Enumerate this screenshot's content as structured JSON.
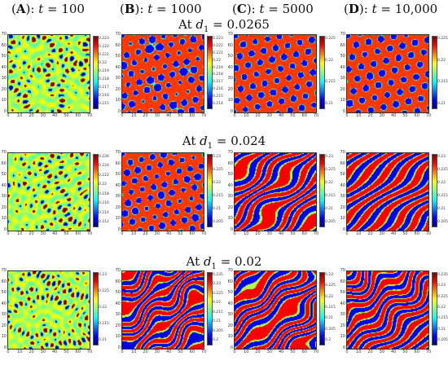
{
  "columns": [
    {
      "label": "A",
      "t": "100"
    },
    {
      "label": "B",
      "t": "1000"
    },
    {
      "label": "C",
      "t": "5000"
    },
    {
      "label": "D",
      "t": "10,000"
    }
  ],
  "rows": [
    {
      "heading_prefix": "At",
      "d_value": "0.0265"
    },
    {
      "heading_prefix": "At",
      "d_value": "0.024"
    },
    {
      "heading_prefix": "At",
      "d_value": "0.02"
    }
  ],
  "x_ticks": [
    "0",
    "10",
    "20",
    "30",
    "40",
    "50",
    "60",
    "70"
  ],
  "y_ticks": [
    "70",
    "60",
    "50",
    "40",
    "30",
    "20",
    "10",
    "0"
  ],
  "colorbars": [
    [
      [
        "0.223",
        "0.222",
        "0.221",
        "0.22",
        "0.219",
        "0.218",
        "0.217",
        "0.216",
        "0.215"
      ],
      [
        "0.223",
        "0.222",
        "0.221",
        "0.22",
        "0.219",
        "0.218",
        "0.217",
        "0.216",
        "0.215",
        "0.214"
      ],
      [
        "0.225",
        "0.22",
        "0.215",
        "0.21"
      ],
      [
        "0.225",
        "0.22",
        "0.215",
        "0.21"
      ]
    ],
    [
      [
        "0.226",
        "0.224",
        "0.222",
        "0.22",
        "0.218",
        "0.216",
        "0.214",
        "0.212"
      ],
      [
        "0.23",
        "0.225",
        "0.22",
        "0.215",
        "0.21",
        "0.205"
      ],
      [
        "0.23",
        "0.225",
        "0.22",
        "0.215",
        "0.21",
        "0.205"
      ],
      [
        "0.23",
        "0.225",
        "0.22",
        "0.215",
        "0.21",
        "0.205"
      ]
    ],
    [
      [
        "0.23",
        "0.225",
        "0.22",
        "0.215",
        "0.21"
      ],
      [
        "0.235",
        "0.23",
        "0.225",
        "0.22",
        "0.215",
        "0.21",
        "0.205",
        "0.2"
      ],
      [
        "0.23",
        "0.225",
        "0.22",
        "0.215",
        "0.21",
        "0.205",
        "0.2"
      ],
      [
        "0.235",
        "0.23",
        "0.225",
        "0.22",
        "0.215",
        "0.21",
        "0.205"
      ]
    ]
  ]
}
